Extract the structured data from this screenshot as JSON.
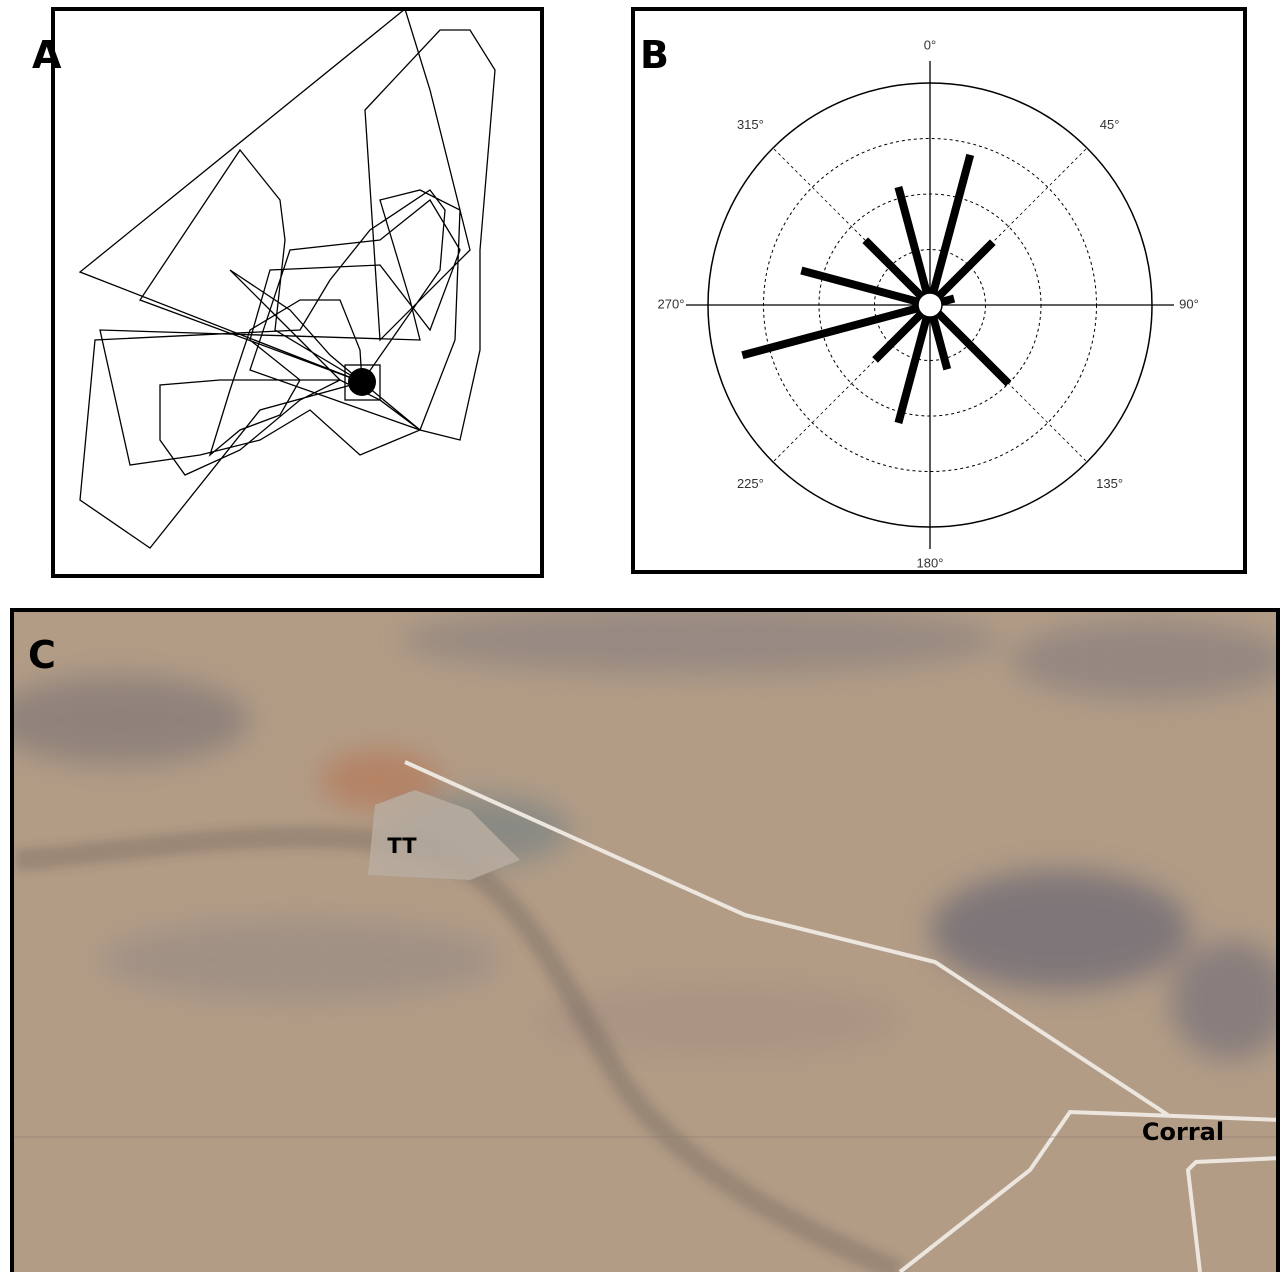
{
  "panel_labels": [
    "A",
    "B",
    "C"
  ],
  "chart_data": {
    "type": "polar_bar",
    "x": [
      15,
      45,
      75,
      135,
      165,
      195,
      225,
      255,
      285,
      315,
      345
    ],
    "values": [
      2.8,
      1.6,
      0.45,
      2.0,
      1.2,
      2.2,
      1.4,
      3.5,
      2.4,
      1.65,
      2.2
    ],
    "color": "#000000",
    "rlim": [
      0,
      4
    ],
    "rticks": [
      1,
      2,
      3,
      4
    ],
    "xlim": [
      0,
      360
    ],
    "xticks": [
      {
        "value": 0,
        "label": "0°"
      },
      {
        "value": 45,
        "label": "45°"
      },
      {
        "value": 90,
        "label": "90°"
      },
      {
        "value": 135,
        "label": "135°"
      },
      {
        "value": 180,
        "label": "180°"
      },
      {
        "value": 225,
        "label": "225°"
      },
      {
        "value": 270,
        "label": "270°"
      },
      {
        "value": 315,
        "label": "315°"
      }
    ]
  },
  "map": {
    "labels": [
      "TT",
      "Corral"
    ]
  }
}
